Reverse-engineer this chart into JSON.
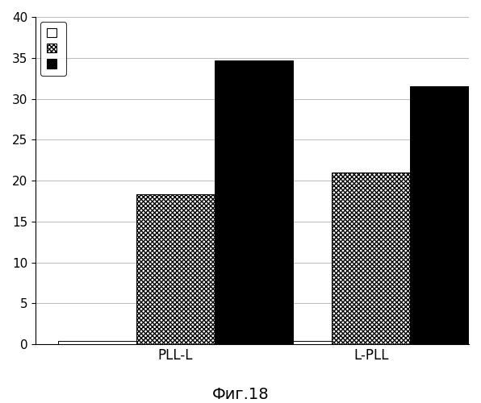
{
  "groups": [
    "PLL-L",
    "L-PLL"
  ],
  "series": [
    {
      "label": "",
      "values": [
        0.4,
        0.4
      ],
      "color": "white",
      "hatch": "",
      "edgecolor": "black"
    },
    {
      "label": "",
      "values": [
        18.3,
        21.0
      ],
      "color": "white",
      "hatch": "zigzag",
      "edgecolor": "black"
    },
    {
      "label": "",
      "values": [
        34.7,
        31.5
      ],
      "color": "black",
      "hatch": "",
      "edgecolor": "black"
    }
  ],
  "ylim": [
    0,
    40
  ],
  "yticks": [
    0,
    5,
    10,
    15,
    20,
    25,
    30,
    35,
    40
  ],
  "caption": "Фиг.18",
  "bar_width": 0.28,
  "group_centers": [
    0.35,
    1.05
  ],
  "background_color": "#ffffff",
  "plot_bg_color": "#ffffff",
  "grid_color": "#c0c0c0",
  "legend_loc": "upper left"
}
